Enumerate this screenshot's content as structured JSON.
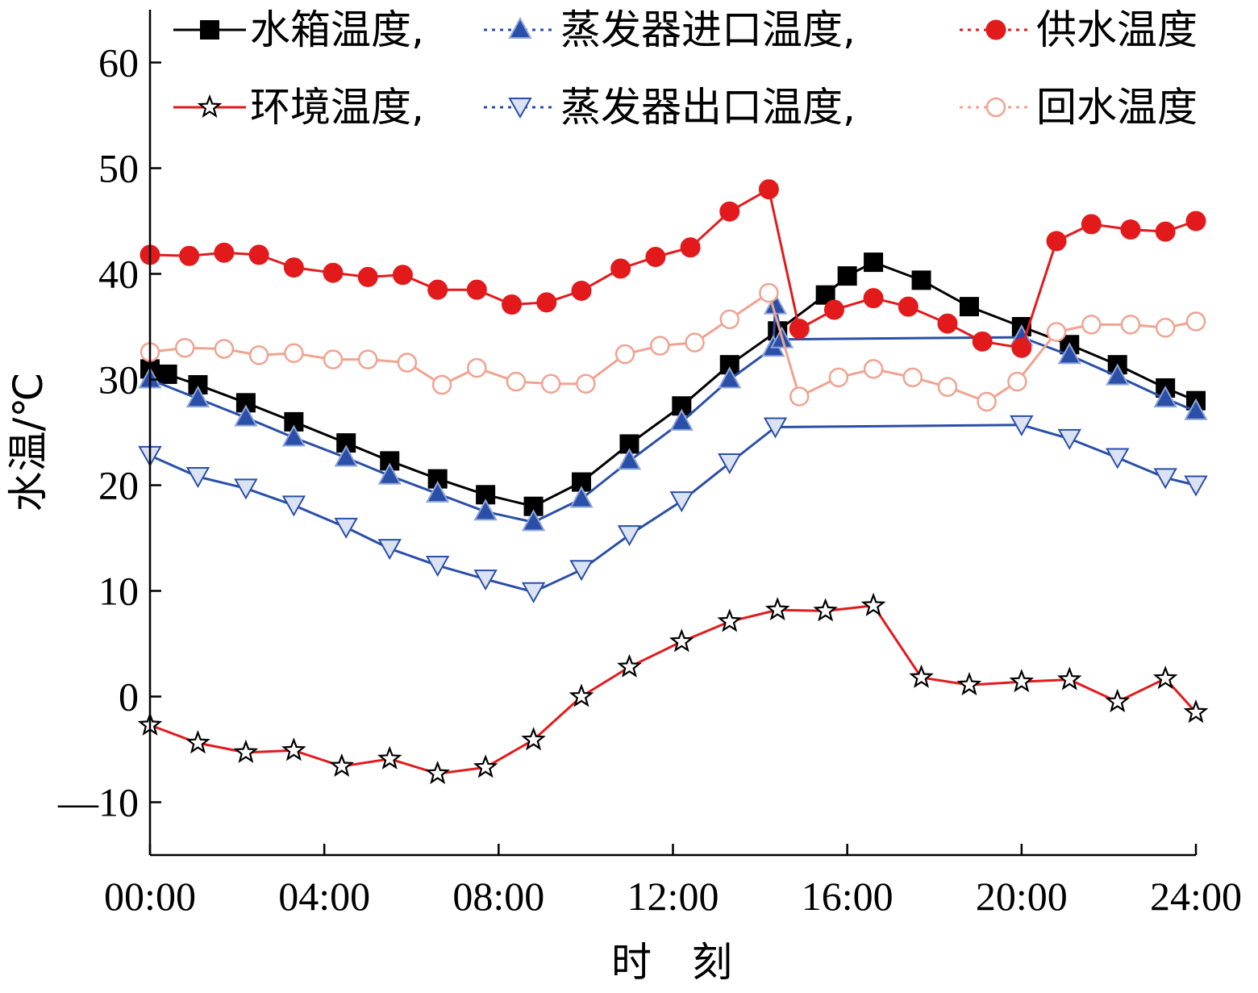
{
  "chart_data": {
    "type": "line",
    "title": "",
    "xlabel": "时　刻",
    "ylabel": "水温/℃",
    "xlim": [
      0,
      24
    ],
    "ylim": [
      -15,
      65
    ],
    "x_tick_values": [
      0,
      4,
      8,
      12,
      16,
      20,
      24
    ],
    "x_tick_labels": [
      "00:00",
      "04:00",
      "08:00",
      "12:00",
      "16:00",
      "20:00",
      "24:00"
    ],
    "y_tick_values": [
      -10,
      0,
      10,
      20,
      30,
      40,
      50,
      60
    ],
    "y_tick_labels": [
      "—10",
      "0",
      "10",
      "20",
      "30",
      "40",
      "50",
      "60"
    ],
    "grid": false,
    "legend_position": "top",
    "series": [
      {
        "name": "水箱温度,",
        "color": "#000000",
        "marker": "square-filled",
        "line_style": "solid",
        "x": [
          0,
          0.4,
          1.1,
          2.2,
          3.3,
          4.5,
          5.5,
          6.6,
          7.7,
          8.8,
          9.9,
          11.0,
          12.2,
          13.3,
          14.4,
          15.5,
          16.0,
          16.6,
          17.7,
          18.8,
          20.0,
          21.1,
          22.2,
          23.3,
          24.0
        ],
        "y": [
          31.0,
          30.5,
          29.5,
          27.8,
          26.0,
          24.0,
          22.3,
          20.6,
          19.1,
          18.0,
          20.3,
          23.9,
          27.5,
          31.4,
          34.6,
          38.0,
          39.8,
          41.1,
          39.4,
          36.9,
          35.0,
          33.3,
          31.4,
          29.2,
          28.0
        ]
      },
      {
        "name": "蒸发器进口温度,",
        "color": "#2a4fa8",
        "marker": "triangle-up-filled",
        "line_style": "solid",
        "x": [
          0,
          1.1,
          2.2,
          3.3,
          4.5,
          5.5,
          6.6,
          7.7,
          8.8,
          9.9,
          11.0,
          12.2,
          13.3,
          14.3,
          14.35,
          14.5,
          20.0,
          21.1,
          22.2,
          23.3,
          24.0
        ],
        "y": [
          30.0,
          28.2,
          26.4,
          24.5,
          22.6,
          20.9,
          19.2,
          17.5,
          16.5,
          18.7,
          22.3,
          26.0,
          30.0,
          33.0,
          37.0,
          33.8,
          34.0,
          32.3,
          30.3,
          28.2,
          27.0
        ]
      },
      {
        "name": "供水温度",
        "color": "#e31a1c",
        "marker": "circle-filled",
        "line_style": "solid",
        "x": [
          0,
          0.9,
          1.7,
          2.5,
          3.3,
          4.2,
          5.0,
          5.8,
          6.6,
          7.5,
          8.3,
          9.1,
          9.9,
          10.8,
          11.6,
          12.4,
          13.3,
          14.2,
          14.9,
          15.7,
          16.6,
          17.4,
          18.3,
          19.1,
          20.0,
          20.8,
          21.6,
          22.5,
          23.3,
          24.0
        ],
        "y": [
          41.8,
          41.7,
          42.0,
          41.8,
          40.6,
          40.1,
          39.7,
          39.9,
          38.5,
          38.5,
          37.1,
          37.3,
          38.4,
          40.5,
          41.6,
          42.5,
          45.9,
          48.0,
          34.8,
          36.6,
          37.7,
          36.9,
          35.3,
          33.6,
          33.0,
          43.1,
          44.7,
          44.2,
          44.0,
          45.0
        ]
      },
      {
        "name": "环境温度,",
        "color": "#e31a1c",
        "marker": "star-open",
        "line_style": "solid",
        "x": [
          0,
          1.1,
          2.2,
          3.3,
          4.4,
          5.5,
          6.6,
          7.7,
          8.8,
          9.9,
          11.0,
          12.2,
          13.3,
          14.4,
          15.5,
          16.6,
          17.7,
          18.8,
          20.0,
          21.1,
          22.2,
          23.3,
          24.0
        ],
        "y": [
          -2.7,
          -4.4,
          -5.3,
          -5.1,
          -6.6,
          -5.9,
          -7.3,
          -6.7,
          -4.1,
          0.0,
          2.8,
          5.2,
          7.1,
          8.2,
          8.1,
          8.6,
          1.8,
          1.1,
          1.4,
          1.6,
          -0.5,
          1.7,
          -1.5
        ]
      },
      {
        "name": "蒸发器出口温度,",
        "color": "#2a4fa8",
        "marker": "triangle-down-open",
        "line_style": "solid",
        "x": [
          0,
          1.1,
          2.2,
          3.3,
          4.5,
          5.5,
          6.6,
          7.7,
          8.8,
          9.9,
          11.0,
          12.2,
          13.3,
          14.35,
          20.0,
          21.1,
          22.2,
          23.3,
          24.0
        ],
        "y": [
          22.8,
          20.8,
          19.7,
          18.1,
          16.0,
          14.0,
          12.4,
          11.1,
          9.9,
          12.0,
          15.3,
          18.5,
          22.1,
          25.5,
          25.7,
          24.4,
          22.6,
          20.7,
          20.0
        ]
      },
      {
        "name": "回水温度",
        "color": "#f0a390",
        "marker": "circle-open",
        "line_style": "solid",
        "x": [
          0,
          0.8,
          1.7,
          2.5,
          3.3,
          4.2,
          5.0,
          5.9,
          6.7,
          7.5,
          8.4,
          9.2,
          10.0,
          10.9,
          11.7,
          12.5,
          13.3,
          14.2,
          14.9,
          15.8,
          16.6,
          17.5,
          18.3,
          19.2,
          19.9,
          20.8,
          21.6,
          22.5,
          23.3,
          24.0
        ],
        "y": [
          32.6,
          33.0,
          32.9,
          32.3,
          32.5,
          31.9,
          31.9,
          31.6,
          29.5,
          31.1,
          29.8,
          29.6,
          29.6,
          32.4,
          33.2,
          33.5,
          35.7,
          38.2,
          28.4,
          30.2,
          31.0,
          30.2,
          29.3,
          27.9,
          29.8,
          34.5,
          35.2,
          35.2,
          34.9,
          35.5
        ]
      }
    ]
  }
}
